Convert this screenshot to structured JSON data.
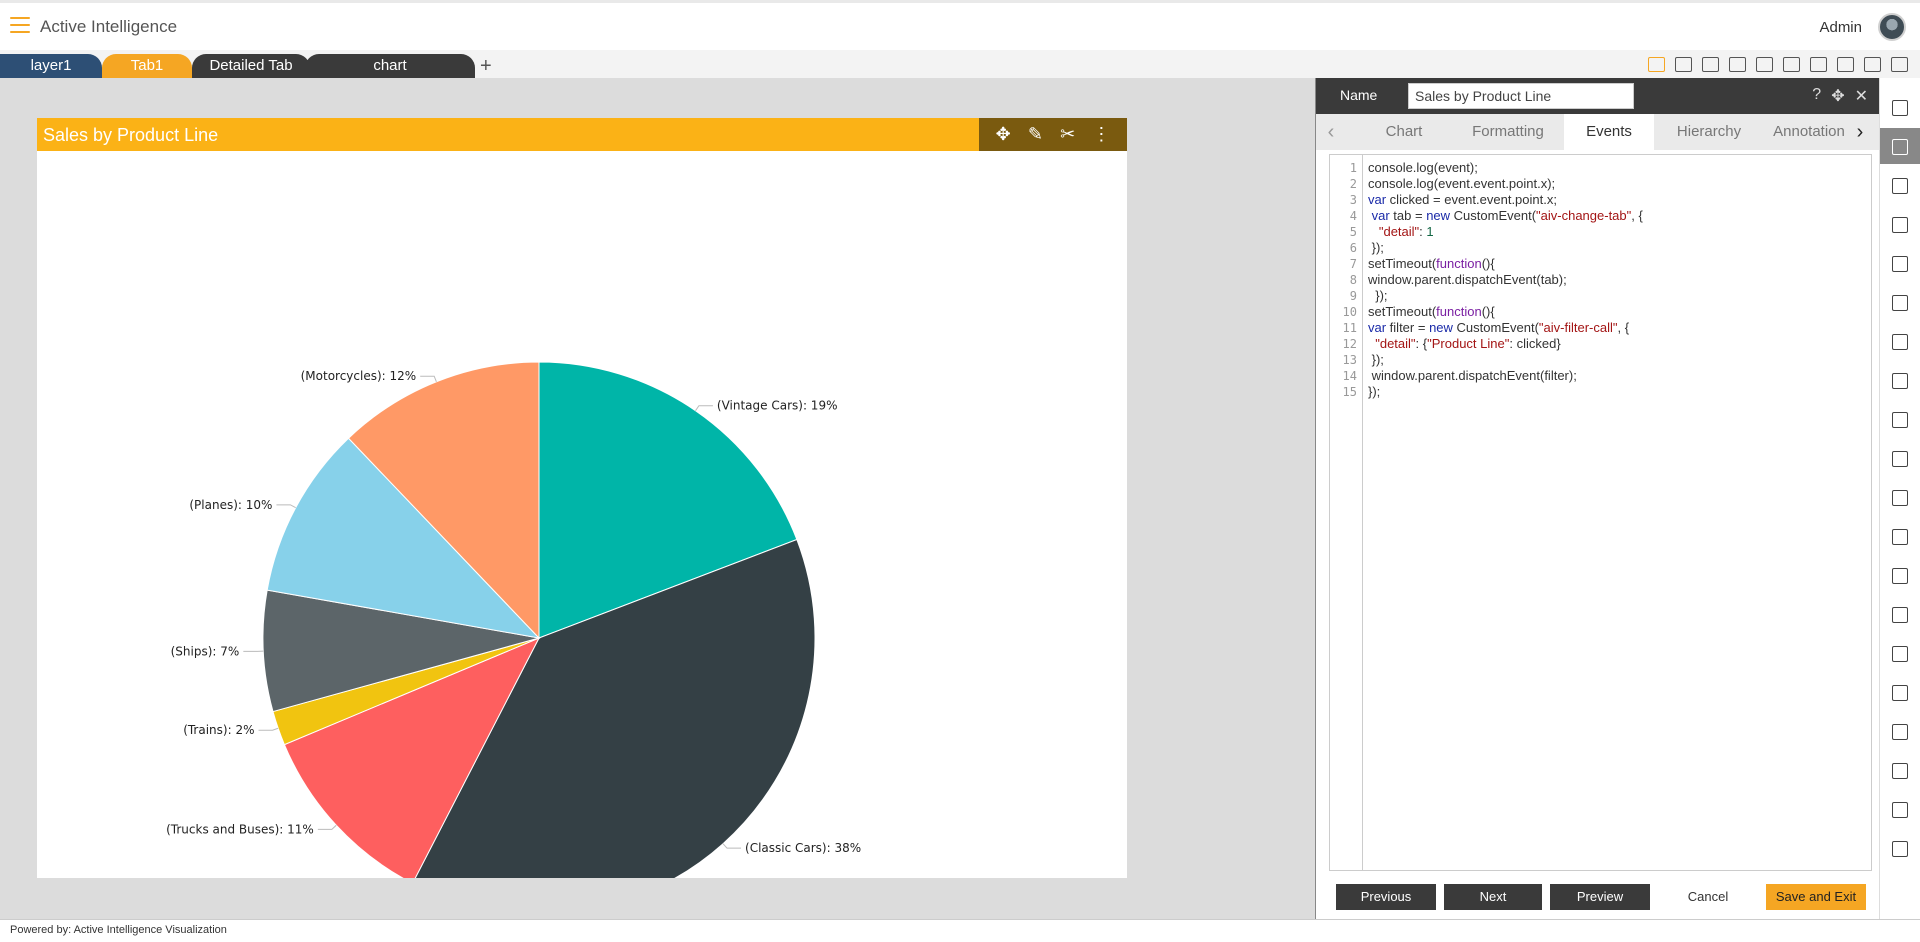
{
  "app": {
    "title": "Active Intelligence",
    "user": "Admin"
  },
  "tabs": [
    "layer1",
    "Tab1",
    "Detailed Tab",
    "chart"
  ],
  "toolbar": {
    "icons": [
      "save-icon",
      "mail-icon",
      "comment-icon",
      "clear-filter-icon",
      "filter-icon",
      "tools-icon",
      "table-icon",
      "screen-icon",
      "devices-icon",
      "play-icon"
    ]
  },
  "widget": {
    "title": "Sales by Product Line"
  },
  "chart_data": {
    "type": "pie",
    "title": "Sales by Product Line",
    "slices": [
      {
        "label": "(Vintage Cars): 19%",
        "name": "Vintage Cars",
        "value": 19,
        "color": "#00b5a8"
      },
      {
        "label": "(Classic Cars): 38%",
        "name": "Classic Cars",
        "value": 38,
        "color": "#344045"
      },
      {
        "label": "(Trucks and Buses): 11%",
        "name": "Trucks and Buses",
        "value": 11,
        "color": "#fe5f5f"
      },
      {
        "label": "(Trains): 2%",
        "name": "Trains",
        "value": 2,
        "color": "#f1c410"
      },
      {
        "label": "(Ships): 7%",
        "name": "Ships",
        "value": 7,
        "color": "#5c6569"
      },
      {
        "label": "(Planes): 10%",
        "name": "Planes",
        "value": 10,
        "color": "#87d1ea"
      },
      {
        "label": "(Motorcycles): 12%",
        "name": "Motorcycles",
        "value": 12,
        "color": "#ff9966"
      }
    ]
  },
  "panel": {
    "name_label": "Name",
    "name_value": "Sales by Product Line",
    "tabs": [
      "Chart",
      "Formatting",
      "Events",
      "Hierarchy",
      "Annotation"
    ],
    "active_tab": "Events",
    "code_lines": [
      "console.log(event);",
      "console.log(event.event.point.x);",
      "var clicked = event.event.point.x;",
      " var tab = new CustomEvent(\"aiv-change-tab\", {",
      "   \"detail\": 1",
      " });",
      "setTimeout(function(){",
      "window.parent.dispatchEvent(tab);",
      "  });",
      "setTimeout(function(){",
      "var filter = new CustomEvent(\"aiv-filter-call\", {",
      "  \"detail\": {\"Product Line\": clicked}",
      " });",
      " window.parent.dispatchEvent(filter);",
      "});"
    ],
    "buttons": {
      "previous": "Previous",
      "next": "Next",
      "preview": "Preview",
      "cancel": "Cancel",
      "save": "Save and Exit"
    }
  },
  "footer": {
    "powered_by": "Powered by: Active Intelligence Visualization"
  }
}
